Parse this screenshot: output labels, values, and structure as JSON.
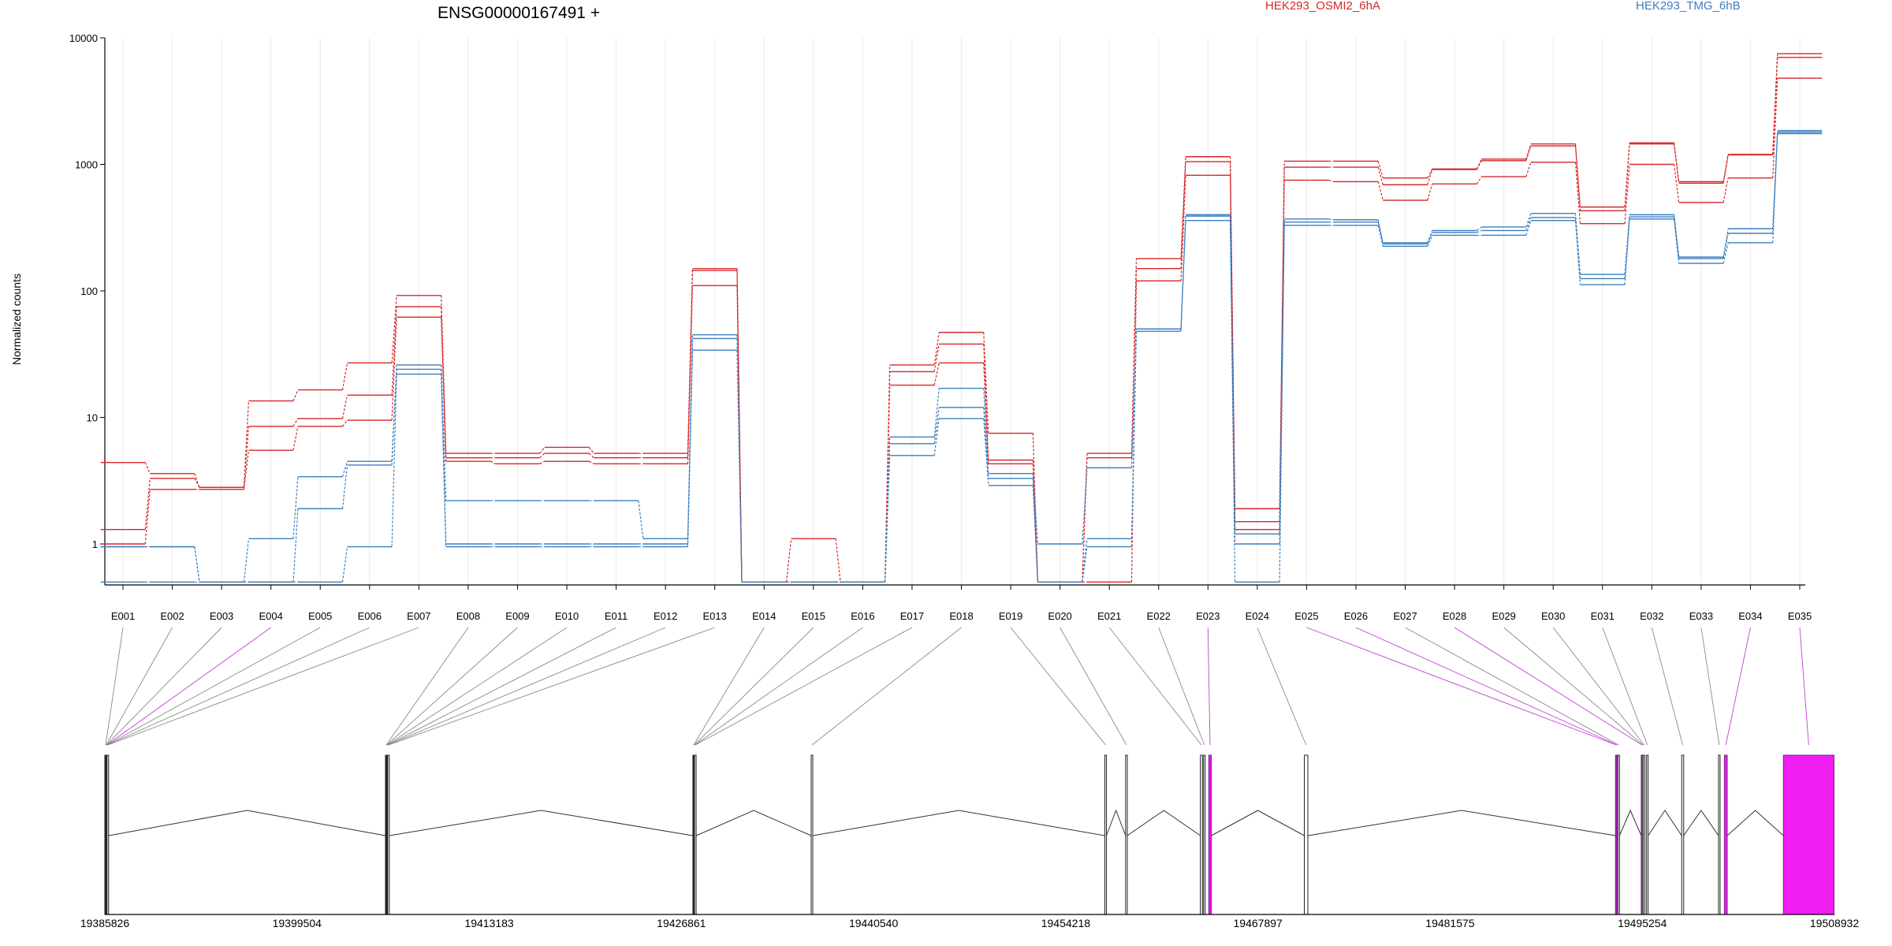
{
  "chart_data": {
    "type": "line",
    "title": "ENSG00000167491 +",
    "ylabel": "Normalized counts",
    "xlabel": "",
    "yscale": "log",
    "ylim": [
      0.5,
      10000
    ],
    "ytick_labels": [
      "1",
      "10",
      "100",
      "1000",
      "10000"
    ],
    "ytick_values": [
      1,
      10,
      100,
      1000,
      10000
    ],
    "categories": [
      "E001",
      "E002",
      "E003",
      "E004",
      "E005",
      "E006",
      "E007",
      "E008",
      "E009",
      "E010",
      "E011",
      "E012",
      "E013",
      "E014",
      "E015",
      "E016",
      "E017",
      "E018",
      "E019",
      "E020",
      "E021",
      "E022",
      "E023",
      "E024",
      "E025",
      "E026",
      "E027",
      "E028",
      "E029",
      "E030",
      "E031",
      "E032",
      "E033",
      "E034",
      "E035"
    ],
    "legend": [
      {
        "label": "HEK293_OSMI2_6hA",
        "color": "#d62728"
      },
      {
        "label": "HEK293_TMG_6hB",
        "color": "#3a7fbf"
      }
    ],
    "series": [
      {
        "group": "HEK293_OSMI2_6hA",
        "color": "#d62728",
        "values": [
          4.4,
          3.6,
          2.8,
          13.5,
          16.5,
          27,
          92,
          5.2,
          5.2,
          5.8,
          5.2,
          5.2,
          150,
          0.5,
          1.1,
          0.5,
          26,
          47,
          7.5,
          0.5,
          5.2,
          180,
          1150,
          1.9,
          1060,
          1060,
          780,
          920,
          1100,
          1450,
          460,
          1480,
          730,
          1200,
          7500
        ]
      },
      {
        "group": "HEK293_OSMI2_6hA",
        "color": "#d62728",
        "values": [
          1.3,
          3.3,
          2.8,
          8.5,
          9.8,
          15,
          75,
          4.8,
          4.8,
          5.2,
          4.8,
          4.8,
          145,
          0.5,
          0.5,
          0.5,
          23,
          38,
          4.6,
          0.5,
          4.8,
          150,
          1050,
          1.5,
          950,
          950,
          690,
          910,
          1070,
          1400,
          430,
          1450,
          710,
          1190,
          7000
        ]
      },
      {
        "group": "HEK293_OSMI2_6hA",
        "color": "#d62728",
        "values": [
          1.0,
          2.7,
          2.7,
          5.5,
          8.5,
          9.5,
          62,
          4.5,
          4.3,
          4.5,
          4.3,
          4.3,
          110,
          0.5,
          0.5,
          0.5,
          18,
          27,
          4.3,
          0.5,
          0.5,
          120,
          820,
          1.3,
          750,
          730,
          520,
          700,
          800,
          1040,
          340,
          1000,
          500,
          780,
          4800
        ]
      },
      {
        "group": "HEK293_TMG_6hB",
        "color": "#3a7fbf",
        "values": [
          0.95,
          0.95,
          0.5,
          1.1,
          3.4,
          4.5,
          26,
          2.2,
          2.2,
          2.2,
          2.2,
          1.1,
          45,
          0.5,
          0.5,
          0.5,
          7,
          17,
          3.6,
          1.0,
          4.0,
          50,
          400,
          1.2,
          370,
          365,
          240,
          300,
          320,
          410,
          135,
          400,
          185,
          310,
          1850
        ]
      },
      {
        "group": "HEK293_TMG_6hB",
        "color": "#3a7fbf",
        "values": [
          0.95,
          0.95,
          0.5,
          0.5,
          1.9,
          4.2,
          24,
          1.0,
          1.0,
          1.0,
          1.0,
          1.0,
          42,
          0.5,
          0.5,
          0.5,
          6.2,
          12,
          3.3,
          0.5,
          1.1,
          50,
          390,
          1.0,
          350,
          350,
          235,
          290,
          300,
          380,
          125,
          385,
          180,
          285,
          1800
        ]
      },
      {
        "group": "HEK293_TMG_6hB",
        "color": "#3a7fbf",
        "values": [
          0.5,
          0.5,
          0.5,
          0.5,
          0.5,
          0.95,
          22,
          0.95,
          0.95,
          0.95,
          0.95,
          0.95,
          34,
          0.5,
          0.5,
          0.5,
          5,
          9.8,
          2.9,
          0.5,
          0.95,
          48,
          360,
          0.5,
          330,
          330,
          225,
          275,
          275,
          360,
          112,
          370,
          165,
          240,
          1750
        ]
      }
    ],
    "gene_model": {
      "positions": [
        "19385826",
        "19399504",
        "19413183",
        "19426861",
        "19440540",
        "19454218",
        "19467897",
        "19481575",
        "19495254",
        "19508932"
      ],
      "position_values": [
        19385826,
        19399504,
        19413183,
        19426861,
        19440540,
        19454218,
        19467897,
        19481575,
        19495254,
        19508932
      ],
      "highlight_color": "#f01ef0",
      "exons": [
        {
          "id": "E001",
          "start": 19385826,
          "end": 19385870,
          "highlight": false
        },
        {
          "id": "E002",
          "start": 19385870,
          "end": 19385890,
          "highlight": false
        },
        {
          "id": "E003",
          "start": 19385890,
          "end": 19385910,
          "highlight": false
        },
        {
          "id": "E004",
          "start": 19385910,
          "end": 19385930,
          "highlight": true
        },
        {
          "id": "E005",
          "start": 19385930,
          "end": 19385950,
          "highlight": false
        },
        {
          "id": "E006",
          "start": 19385950,
          "end": 19385980,
          "highlight": false
        },
        {
          "id": "E007",
          "start": 19385980,
          "end": 19386030,
          "highlight": false
        },
        {
          "id": "E008",
          "start": 19405800,
          "end": 19405830,
          "highlight": false
        },
        {
          "id": "E009",
          "start": 19405830,
          "end": 19405860,
          "highlight": false
        },
        {
          "id": "E010",
          "start": 19405860,
          "end": 19405890,
          "highlight": false
        },
        {
          "id": "E011",
          "start": 19405890,
          "end": 19405920,
          "highlight": false
        },
        {
          "id": "E012",
          "start": 19405920,
          "end": 19405960,
          "highlight": false
        },
        {
          "id": "E013",
          "start": 19405960,
          "end": 19406020,
          "highlight": false
        },
        {
          "id": "E014",
          "start": 19427680,
          "end": 19427720,
          "highlight": false
        },
        {
          "id": "E015",
          "start": 19427720,
          "end": 19427760,
          "highlight": false
        },
        {
          "id": "E016",
          "start": 19427760,
          "end": 19427800,
          "highlight": false
        },
        {
          "id": "E017",
          "start": 19427800,
          "end": 19427840,
          "highlight": false
        },
        {
          "id": "E018",
          "start": 19436100,
          "end": 19436160,
          "highlight": false
        },
        {
          "id": "E019",
          "start": 19457000,
          "end": 19457080,
          "highlight": false
        },
        {
          "id": "E020",
          "start": 19458480,
          "end": 19458600,
          "highlight": false
        },
        {
          "id": "E021",
          "start": 19463800,
          "end": 19463950,
          "highlight": false
        },
        {
          "id": "E022",
          "start": 19464030,
          "end": 19464100,
          "highlight": false
        },
        {
          "id": "E023",
          "start": 19464400,
          "end": 19464580,
          "highlight": true
        },
        {
          "id": "E024",
          "start": 19471200,
          "end": 19471450,
          "highlight": false
        },
        {
          "id": "E025",
          "start": 19493350,
          "end": 19493400,
          "highlight": true
        },
        {
          "id": "E026",
          "start": 19493400,
          "end": 19493500,
          "highlight": true
        },
        {
          "id": "E027",
          "start": 19493520,
          "end": 19493560,
          "highlight": false
        },
        {
          "id": "E028",
          "start": 19495180,
          "end": 19495220,
          "highlight": true
        },
        {
          "id": "E029",
          "start": 19495250,
          "end": 19495310,
          "highlight": false
        },
        {
          "id": "E030",
          "start": 19495330,
          "end": 19495380,
          "highlight": false
        },
        {
          "id": "E031",
          "start": 19495560,
          "end": 19495600,
          "highlight": false
        },
        {
          "id": "E032",
          "start": 19498060,
          "end": 19498200,
          "highlight": false
        },
        {
          "id": "E033",
          "start": 19500680,
          "end": 19500760,
          "highlight": false
        },
        {
          "id": "E034",
          "start": 19501100,
          "end": 19501300,
          "highlight": true
        },
        {
          "id": "E035",
          "start": 19505300,
          "end": 19508900,
          "highlight": true
        }
      ]
    }
  }
}
